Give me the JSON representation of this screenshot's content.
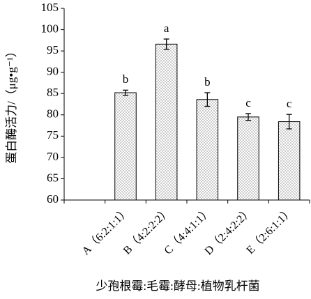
{
  "chart_data": {
    "type": "bar",
    "y_label": "蛋白酶活力/（μg•g⁻¹）",
    "x_label": "少孢根霉:毛霉:酵母:植物乳杆菌",
    "categories": [
      null,
      "A（6:2:1:1）",
      "B（4:2:2:2）",
      "C（4:4:1:1）",
      "D（2:4:2:2）",
      "E（2:6:1:1）"
    ],
    "values": [
      null,
      85.2,
      96.6,
      83.6,
      79.5,
      78.4
    ],
    "errors": [
      null,
      0.6,
      1.2,
      1.6,
      0.8,
      1.7
    ],
    "annotations": [
      null,
      "b",
      "a",
      "b",
      "c",
      "c"
    ],
    "color": "#b0b0b0",
    "ylim": [
      60,
      105
    ],
    "yticks": [
      60,
      65,
      70,
      75,
      80,
      85,
      90,
      95,
      100,
      105
    ]
  }
}
